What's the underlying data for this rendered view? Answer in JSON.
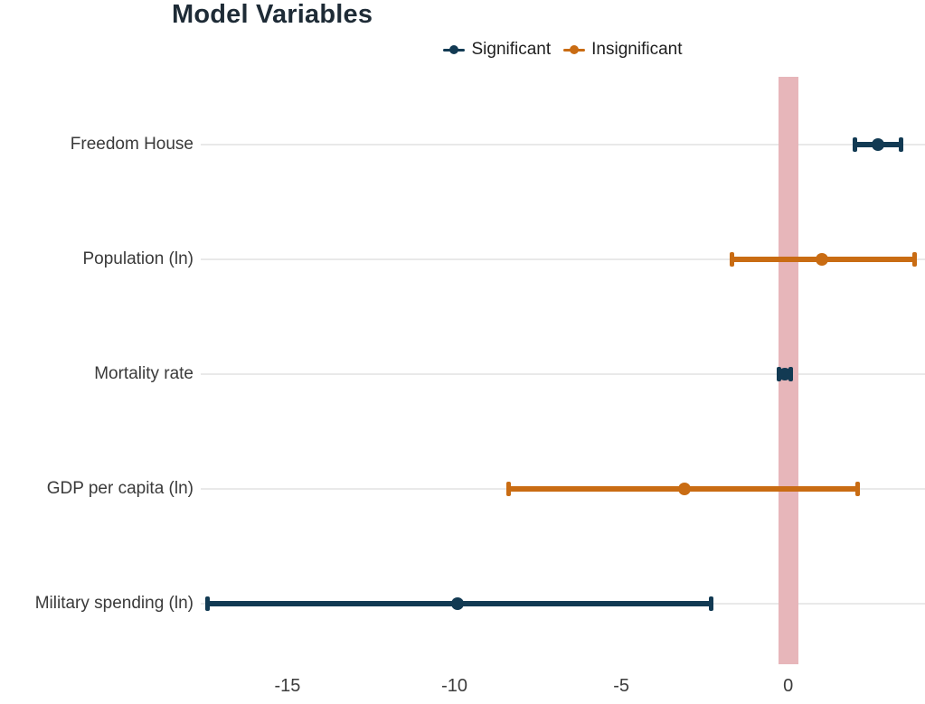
{
  "title": "Model Variables",
  "legend": {
    "items": [
      {
        "label": "Significant",
        "group": "Significant"
      },
      {
        "label": "Insignificant",
        "group": "Insignificant"
      }
    ]
  },
  "colors": {
    "significant": "#123a53",
    "insignificant": "#c96c13",
    "zero_band": "#e7b6ba",
    "gridline": "#e9e9e9",
    "title_text": "#1e2b36",
    "axis_text": "#3c3c3c"
  },
  "chart_data": {
    "type": "scatter",
    "subtype": "dot-and-whisker coefficient plot, horizontal",
    "title": "Model Variables",
    "xlabel": "",
    "ylabel": "",
    "categories": [
      "Freedom House",
      "Population (ln)",
      "Mortality rate",
      "GDP per capita (ln)",
      "Military spending (ln)"
    ],
    "series": [
      {
        "name": "Freedom House",
        "group": "Significant",
        "estimate": 2.7,
        "ci_low": 2.0,
        "ci_high": 3.4
      },
      {
        "name": "Population (ln)",
        "group": "Insignificant",
        "estimate": 1.0,
        "ci_low": -1.7,
        "ci_high": 3.8
      },
      {
        "name": "Mortality rate",
        "group": "Significant",
        "estimate": -0.1,
        "ci_low": -0.3,
        "ci_high": 0.1
      },
      {
        "name": "GDP per capita (ln)",
        "group": "Insignificant",
        "estimate": -3.1,
        "ci_low": -8.4,
        "ci_high": 2.1
      },
      {
        "name": "Military spending (ln)",
        "group": "Significant",
        "estimate": -9.9,
        "ci_low": -17.4,
        "ci_high": -2.3
      }
    ],
    "x_ticks": [
      -15,
      -10,
      -5,
      0
    ],
    "x_tick_labels": [
      "-15",
      "-10",
      "-5",
      "0"
    ],
    "xlim": [
      -17.6,
      4.1
    ],
    "zero_band": {
      "x": 0,
      "half_width": 0.22
    },
    "grid": "horizontal gridline per category only",
    "legend_position": "top-center",
    "legend_entries": [
      "Significant",
      "Insignificant"
    ]
  }
}
